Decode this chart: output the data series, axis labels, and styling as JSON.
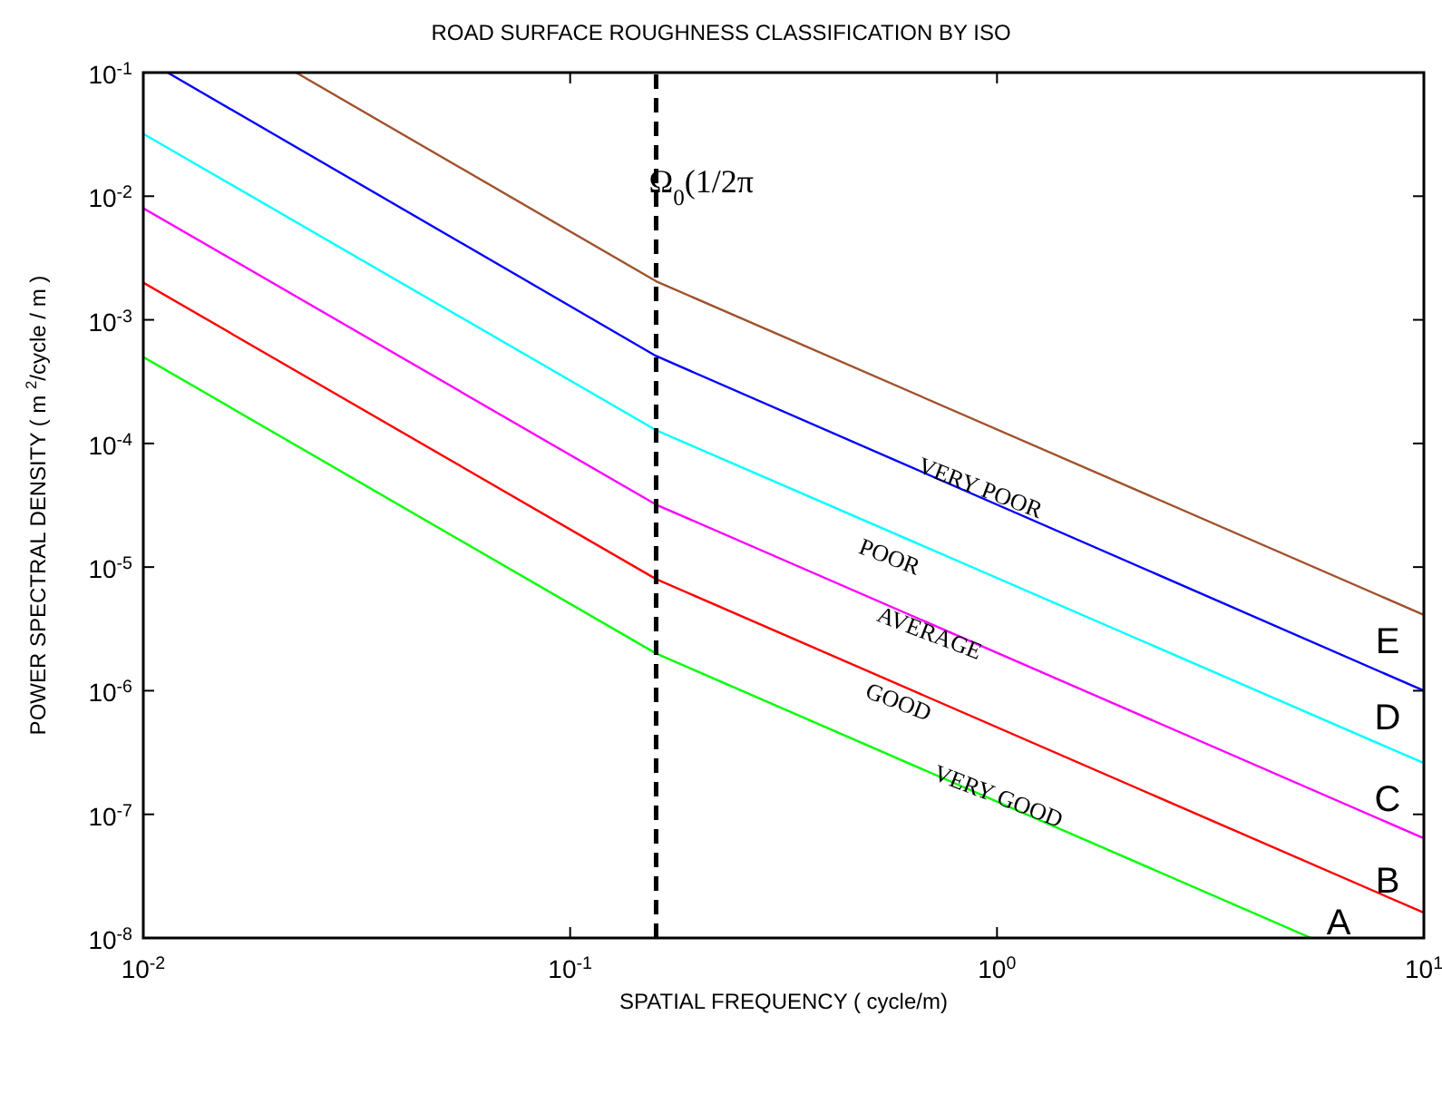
{
  "chart_data": {
    "type": "line",
    "title": "ROAD SURFACE ROUGHNESS CLASSIFICATION BY ISO",
    "xlabel": "SPATIAL FREQUENCY  ( cycle/m)",
    "ylabel": "POWER SPECTRAL DENSITY  ( m $^{2}$/cycle / m )",
    "log": "xy",
    "grid": false,
    "line_style": "solid",
    "marker": "none",
    "xlim": [
      0.01,
      10
    ],
    "ylim": [
      1e-08,
      0.1
    ],
    "xticks": [
      {
        "value": 0.01,
        "label": "10$^{-2}$"
      },
      {
        "value": 0.1,
        "label": "10$^{-1}$"
      },
      {
        "value": 1,
        "label": "10$^{0}$"
      },
      {
        "value": 10,
        "label": "10$^{1}$"
      }
    ],
    "yticks": [
      {
        "value": 1e-08,
        "label": "10$^{-8}$"
      },
      {
        "value": 1e-07,
        "label": "10$^{-7}$"
      },
      {
        "value": 1e-06,
        "label": "10$^{-6}$"
      },
      {
        "value": 1e-05,
        "label": "10$^{-5}$"
      },
      {
        "value": 0.0001,
        "label": "10$^{-4}$"
      },
      {
        "value": 0.001,
        "label": "10$^{-3}$"
      },
      {
        "value": 0.01,
        "label": "10$^{-2}$"
      },
      {
        "value": 0.1,
        "label": "10$^{-1}$"
      }
    ],
    "series": [
      {
        "color": "#00ff00",
        "x": [
          0.01,
          0.159,
          5.44
        ],
        "values": [
          0.0005,
          2e-06,
          1e-08
        ]
      },
      {
        "color": "#ff0000",
        "x": [
          0.01,
          0.159,
          10
        ],
        "values": [
          0.002,
          8e-06,
          1.6e-08
        ]
      },
      {
        "color": "#ff00ff",
        "x": [
          0.01,
          0.159,
          10
        ],
        "values": [
          0.008,
          3.2e-05,
          6.4e-08
        ]
      },
      {
        "color": "#00ffff",
        "x": [
          0.01,
          0.159,
          10
        ],
        "values": [
          0.032,
          0.000128,
          2.6e-07
        ]
      },
      {
        "color": "#0000ff",
        "x": [
          0.0114,
          0.159,
          10
        ],
        "values": [
          0.1,
          0.00051,
          1e-06
        ]
      },
      {
        "color": "#a0522d",
        "x": [
          0.0228,
          0.159,
          10
        ],
        "values": [
          0.1,
          0.00205,
          4.1e-06
        ]
      }
    ],
    "ref_lines": [
      {
        "axis": "x",
        "value": 0.159,
        "label": "Ω$_{0}$(1/2π",
        "color": "#000000",
        "line_style": "dashed"
      }
    ],
    "annotations": [
      "VERY POOR",
      "POOR",
      "AVERAGE",
      "GOOD",
      "VERY GOOD",
      "E",
      "D",
      "C",
      "B",
      "A"
    ]
  }
}
